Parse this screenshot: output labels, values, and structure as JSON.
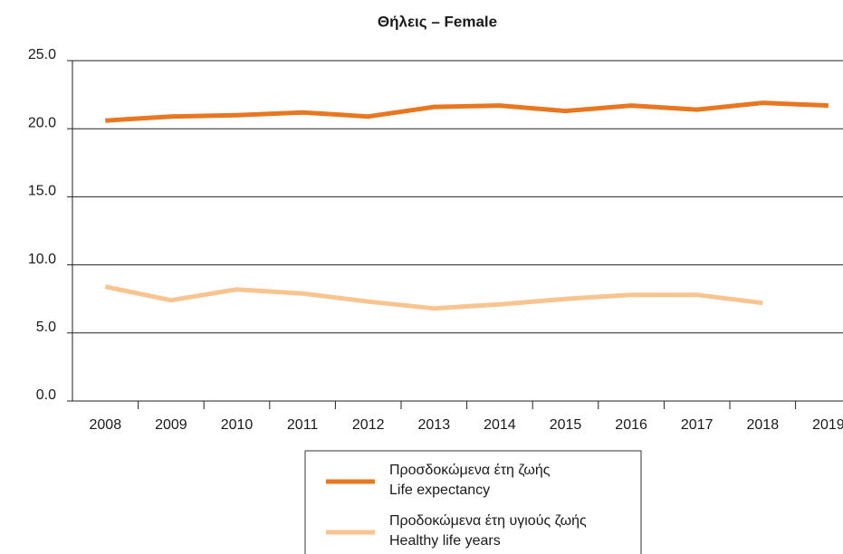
{
  "chart_data": {
    "type": "line",
    "title": "Θήλεις – Female",
    "categories": [
      "2008",
      "2009",
      "2010",
      "2011",
      "2012",
      "2013",
      "2014",
      "2015",
      "2016",
      "2017",
      "2018",
      "2019"
    ],
    "series": [
      {
        "name": "Προσδοκώμενα έτη ζωής",
        "name_en": "Life expectancy",
        "color": "#e87722",
        "values": [
          20.6,
          20.9,
          21.0,
          21.2,
          20.9,
          21.6,
          21.7,
          21.3,
          21.7,
          21.4,
          21.9,
          21.7
        ]
      },
      {
        "name": "Προδοκώμενα έτη υγιούς ζωής",
        "name_en": "Healthy life years",
        "color": "#f8c48f",
        "values": [
          8.4,
          7.4,
          8.2,
          7.9,
          7.3,
          6.8,
          7.1,
          7.5,
          7.8,
          7.8,
          7.2,
          null
        ]
      }
    ],
    "ylim": [
      0,
      25
    ],
    "yticks": [
      {
        "value": 0,
        "label": "0.0"
      },
      {
        "value": 5,
        "label": "5.0"
      },
      {
        "value": 10,
        "label": "10.0"
      },
      {
        "value": 15,
        "label": "15.0"
      },
      {
        "value": 20,
        "label": "20.0"
      },
      {
        "value": 25,
        "label": "25.0"
      }
    ],
    "grid": true,
    "legend": "bottom"
  }
}
